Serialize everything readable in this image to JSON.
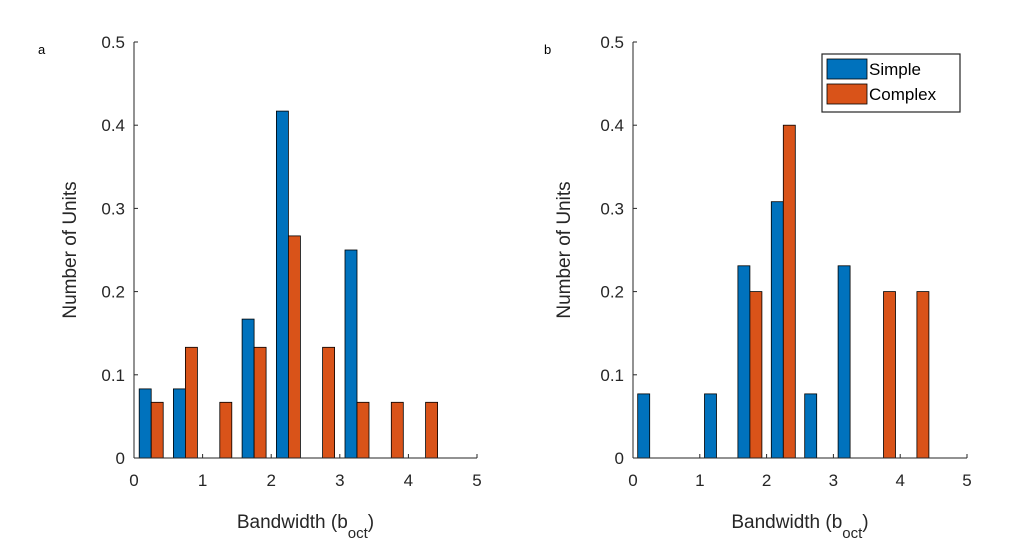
{
  "chart_data": [
    {
      "type": "bar",
      "panel_label": "a",
      "xlabel_main": "Bandwidth (b",
      "xlabel_sub": "oct",
      "xlabel_close": ")",
      "ylabel": "Number of Units",
      "xlim": [
        0,
        5
      ],
      "ylim": [
        0,
        0.5
      ],
      "xticks": [
        "0",
        "1",
        "2",
        "3",
        "4",
        "5"
      ],
      "yticks": [
        "0",
        "0.1",
        "0.2",
        "0.3",
        "0.4",
        "0.5"
      ],
      "bin_centers": [
        0.25,
        0.75,
        1.25,
        1.75,
        2.25,
        2.75,
        3.25,
        3.75,
        4.25
      ],
      "series": [
        {
          "name": "Simple",
          "color": "#0072BD",
          "values": [
            0.083,
            0.083,
            0,
            0.167,
            0.417,
            0,
            0.25,
            0,
            0
          ]
        },
        {
          "name": "Complex",
          "color": "#D95319",
          "values": [
            0.067,
            0.133,
            0.067,
            0.133,
            0.267,
            0.133,
            0.067,
            0.067,
            0.067
          ]
        }
      ],
      "grid": false,
      "legend": null
    },
    {
      "type": "bar",
      "panel_label": "b",
      "xlabel_main": "Bandwidth (b",
      "xlabel_sub": "oct",
      "xlabel_close": ")",
      "ylabel": "Number of Units",
      "xlim": [
        0,
        5
      ],
      "ylim": [
        0,
        0.5
      ],
      "xticks": [
        "0",
        "1",
        "2",
        "3",
        "4",
        "5"
      ],
      "yticks": [
        "0",
        "0.1",
        "0.2",
        "0.3",
        "0.4",
        "0.5"
      ],
      "bin_centers": [
        0.25,
        0.75,
        1.25,
        1.75,
        2.25,
        2.75,
        3.25,
        3.75,
        4.25
      ],
      "series": [
        {
          "name": "Simple",
          "color": "#0072BD",
          "values": [
            0.077,
            0,
            0.077,
            0.231,
            0.308,
            0.077,
            0.231,
            0,
            0
          ]
        },
        {
          "name": "Complex",
          "color": "#D95319",
          "values": [
            0,
            0,
            0,
            0.2,
            0.4,
            0,
            0,
            0.2,
            0.2
          ]
        }
      ],
      "grid": false,
      "legend": {
        "placement": "top-right",
        "entries": [
          "Simple",
          "Complex"
        ]
      }
    }
  ]
}
